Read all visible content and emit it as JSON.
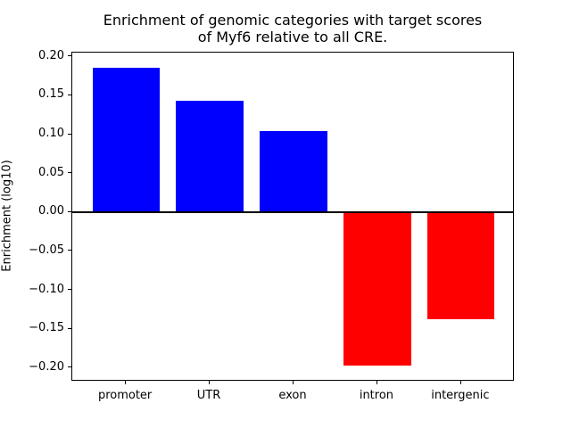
{
  "chart": {
    "title_display": "Enrichment of genomic categories with target scores\nof Myf6 relative to all CRE.",
    "ylabel": "Enrichment (log10)"
  },
  "chart_data": {
    "type": "bar",
    "title": "Enrichment of genomic categories with target scores of Myf6 relative to all CRE.",
    "xlabel": "",
    "ylabel": "Enrichment (log10)",
    "categories": [
      "promoter",
      "UTR",
      "exon",
      "intron",
      "intergenic"
    ],
    "values": [
      0.185,
      0.143,
      0.104,
      -0.197,
      -0.138
    ],
    "bar_colors": [
      "#0000ff",
      "#0000ff",
      "#0000ff",
      "#ff0000",
      "#ff0000"
    ],
    "positive_color": "#0000ff",
    "negative_color": "#ff0000",
    "yticks": [
      0.2,
      0.15,
      0.1,
      0.05,
      0.0,
      -0.05,
      -0.1,
      -0.15,
      -0.2
    ],
    "ytick_labels": [
      "0.20",
      "0.15",
      "0.10",
      "0.05",
      "0.00",
      "−0.05",
      "−0.10",
      "−0.15",
      "−0.20"
    ],
    "ylim": [
      -0.218,
      0.205
    ],
    "xlim": [
      -0.64,
      4.64
    ],
    "bar_width": 0.8,
    "grid": false,
    "legend": null,
    "zero_line": true,
    "background_color": "#ffffff",
    "spine_color": "#000000"
  }
}
